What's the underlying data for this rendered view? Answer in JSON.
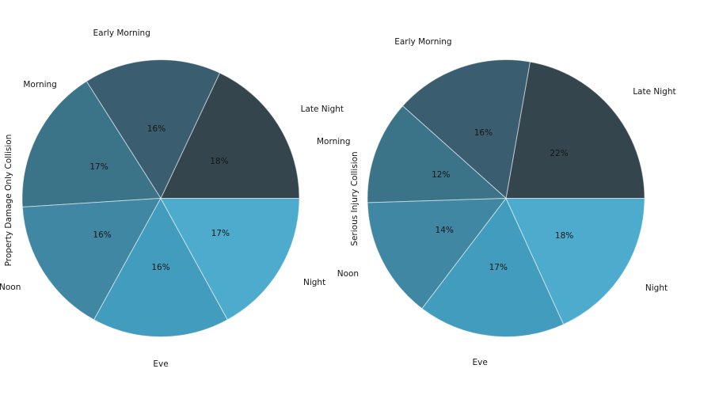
{
  "figure": {
    "background": "#ffffff",
    "text_color": "#151515",
    "slice_separator_color": "rgba(255,255,255,0.55)"
  },
  "chart_data": [
    {
      "type": "pie",
      "ylabel": "Property Damage Only Collision",
      "start_angle": 0,
      "direction": "counterclockwise",
      "slices": [
        {
          "label": "Late Night",
          "value": 18,
          "pct_label": "18%",
          "color": "#34454e"
        },
        {
          "label": "Early Morning",
          "value": 16,
          "pct_label": "16%",
          "color": "#3a5e70"
        },
        {
          "label": "Morning",
          "value": 17,
          "pct_label": "17%",
          "color": "#3b7389"
        },
        {
          "label": "Noon",
          "value": 16,
          "pct_label": "16%",
          "color": "#3f87a3"
        },
        {
          "label": "Eve",
          "value": 16,
          "pct_label": "16%",
          "color": "#429cbd"
        },
        {
          "label": "Night",
          "value": 17,
          "pct_label": "17%",
          "color": "#4daccd"
        }
      ]
    },
    {
      "type": "pie",
      "ylabel": "Serious Injury Collision",
      "start_angle": 0,
      "direction": "counterclockwise",
      "slices": [
        {
          "label": "Late Night",
          "value": 22,
          "pct_label": "22%",
          "color": "#34454e"
        },
        {
          "label": "Early Morning",
          "value": 16,
          "pct_label": "16%",
          "color": "#3a5e70"
        },
        {
          "label": "Morning",
          "value": 12,
          "pct_label": "12%",
          "color": "#3b7389"
        },
        {
          "label": "Noon",
          "value": 14,
          "pct_label": "14%",
          "color": "#3f87a3"
        },
        {
          "label": "Eve",
          "value": 17,
          "pct_label": "17%",
          "color": "#429cbd"
        },
        {
          "label": "Night",
          "value": 18,
          "pct_label": "18%",
          "color": "#4daccd"
        }
      ]
    }
  ]
}
